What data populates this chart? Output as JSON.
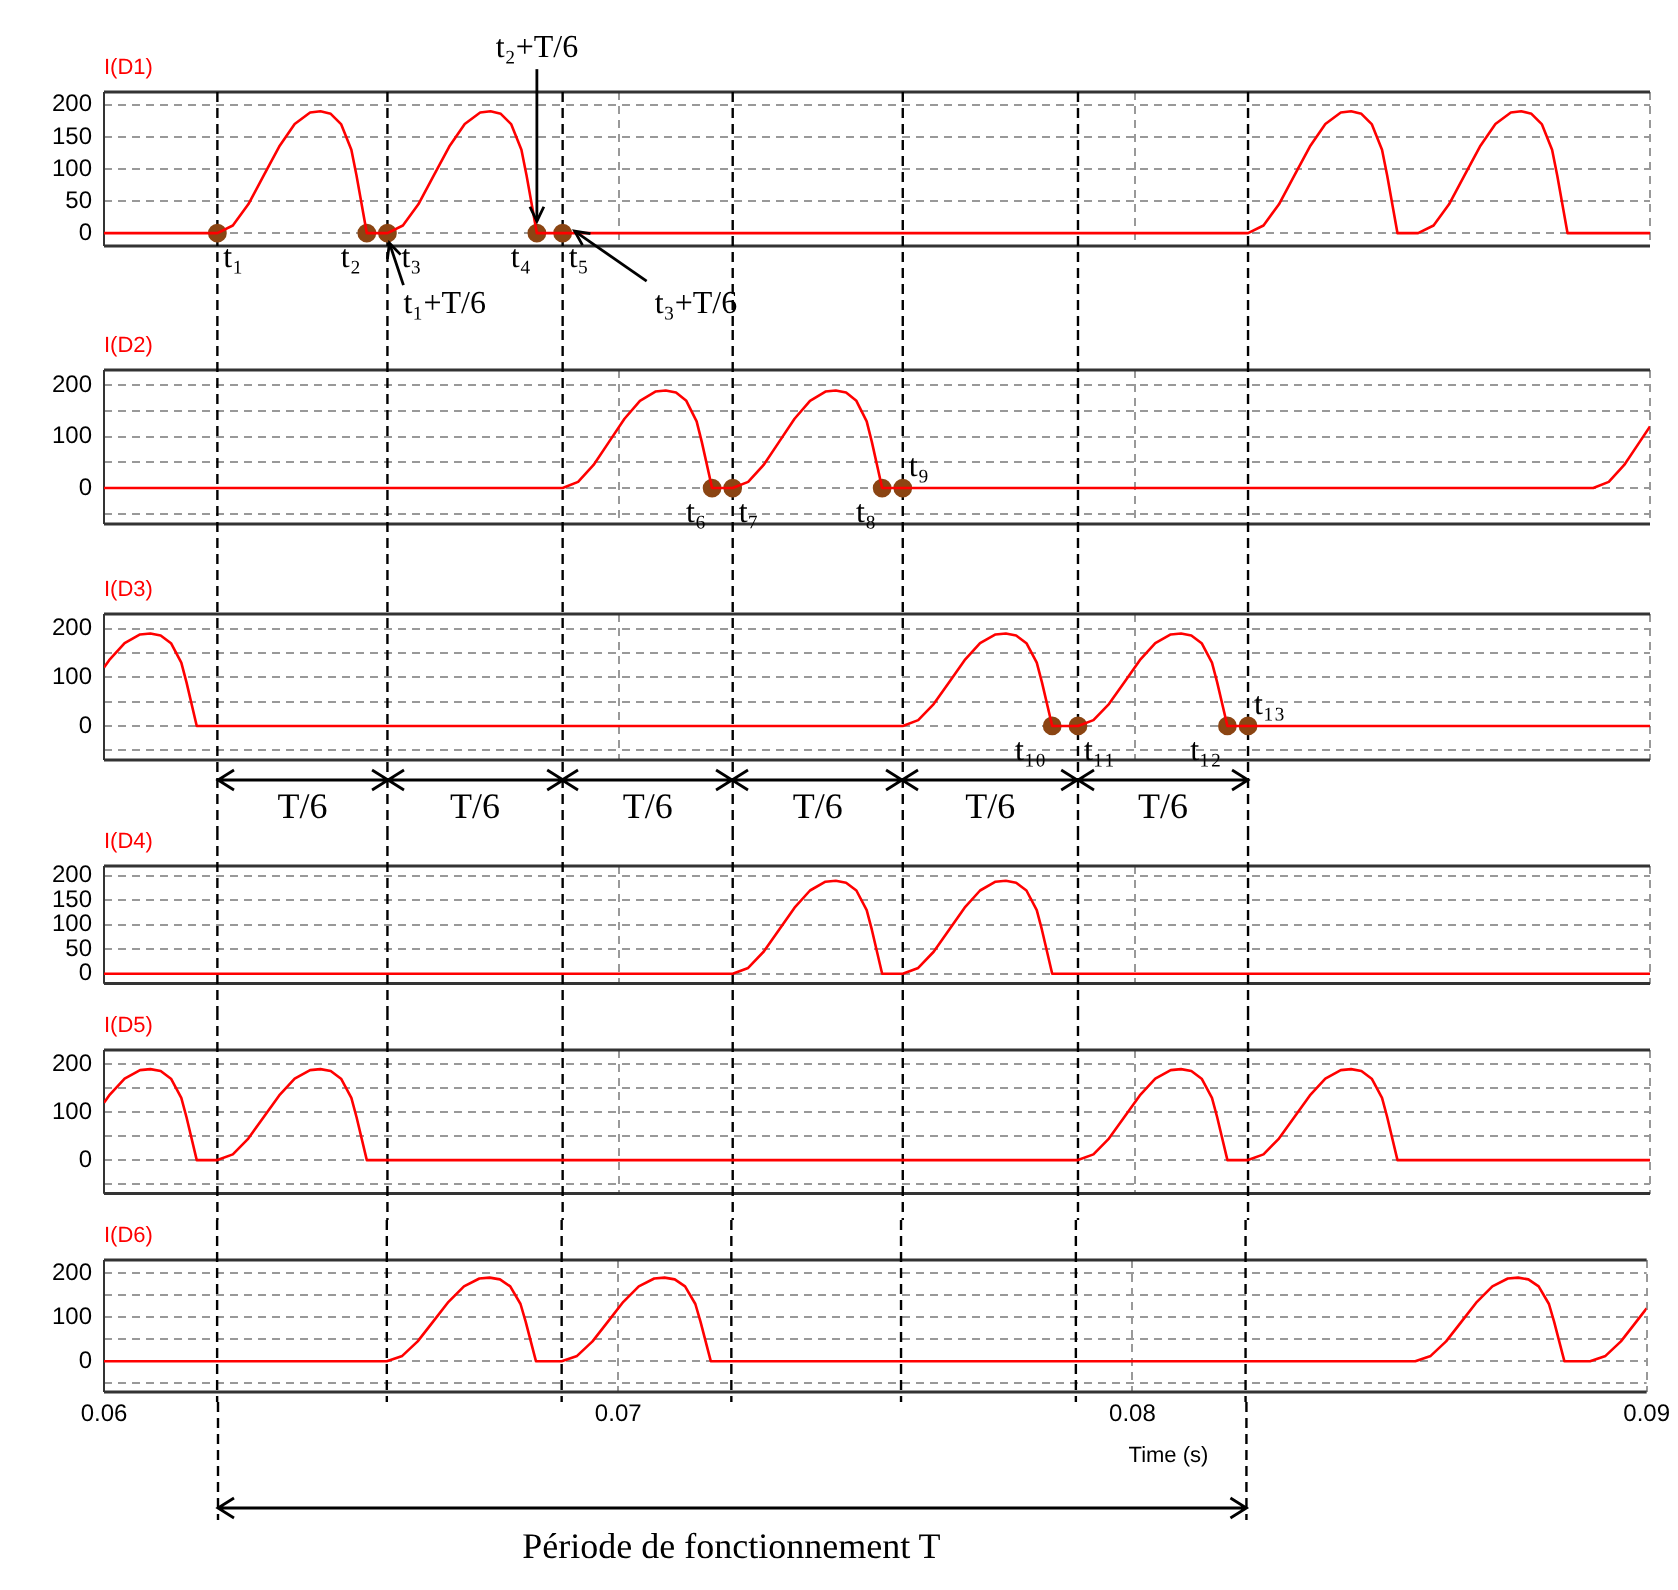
{
  "chart_data": [
    {
      "type": "line",
      "title": "I(D1)",
      "xlim": [
        0.06,
        0.09
      ],
      "xticks": [
        0.06,
        0.07,
        0.08,
        0.09
      ],
      "ylim": [
        -20,
        220
      ],
      "yticks": [
        0,
        50,
        100,
        150,
        200
      ],
      "grid": true,
      "tick_labels": "y",
      "series": [
        {
          "color": "#ff0000",
          "x": [
            0.06,
            0.0622,
            0.0625,
            0.0628,
            0.0631,
            0.0634,
            0.0637,
            0.064,
            0.0642,
            0.0644,
            0.0646,
            0.0648,
            0.0649,
            0.0651,
            0.0655,
            0.0658,
            0.0661,
            0.0664,
            0.0667,
            0.067,
            0.0673,
            0.0675,
            0.0677,
            0.0679,
            0.0681,
            0.0682,
            0.0684,
            0.0822,
            0.0825,
            0.0828,
            0.0831,
            0.0834,
            0.0837,
            0.084,
            0.0842,
            0.0844,
            0.0846,
            0.0848,
            0.0849,
            0.0851,
            0.0855,
            0.0858,
            0.0861,
            0.0864,
            0.0867,
            0.087,
            0.0873,
            0.0875,
            0.0877,
            0.0879,
            0.0881,
            0.0882,
            0.0884,
            0.09
          ],
          "values": [
            0,
            0,
            12,
            45,
            90,
            135,
            170,
            188,
            190,
            186,
            170,
            130,
            90,
            0,
            0,
            12,
            45,
            90,
            135,
            170,
            188,
            190,
            186,
            170,
            130,
            90,
            0,
            0,
            12,
            45,
            90,
            135,
            170,
            188,
            190,
            186,
            170,
            130,
            90,
            0,
            0,
            12,
            45,
            90,
            135,
            170,
            188,
            190,
            186,
            170,
            130,
            90,
            0,
            0
          ]
        },
        {
          "type": "scatter",
          "color": "#8b4513",
          "marker": "circle",
          "x": [
            0.0622,
            0.0651,
            0.0655,
            0.0684,
            0.0689
          ],
          "values": [
            0,
            0,
            0,
            0,
            0
          ]
        }
      ],
      "ref_lines": [
        {
          "axis": "x",
          "value": 0.0622,
          "line_style": "dashed"
        },
        {
          "axis": "x",
          "value": 0.0655,
          "line_style": "dashed"
        },
        {
          "axis": "x",
          "value": 0.0689,
          "line_style": "dashed"
        },
        {
          "axis": "x",
          "value": 0.0722,
          "line_style": "dashed"
        },
        {
          "axis": "x",
          "value": 0.0755,
          "line_style": "dashed"
        },
        {
          "axis": "x",
          "value": 0.0789,
          "line_style": "dashed"
        },
        {
          "axis": "x",
          "value": 0.0822,
          "line_style": "dashed"
        }
      ],
      "annotations": [
        {
          "text": "t₁",
          "x": 0.0622,
          "y": 0
        },
        {
          "text": "t₂",
          "x": 0.0651,
          "y": 0
        },
        {
          "text": "t₃",
          "x": 0.0655,
          "y": 0
        },
        {
          "text": "t₄",
          "x": 0.0684,
          "y": 0
        },
        {
          "text": "t₅",
          "x": 0.0689,
          "y": 0
        },
        {
          "text": "t₁+T/6",
          "x": 0.0655,
          "y": 0
        },
        {
          "text": "t₂+T/6",
          "x": 0.0684,
          "y": 0
        },
        {
          "text": "t₃+T/6",
          "x": 0.0689,
          "y": 0
        }
      ]
    },
    {
      "type": "line",
      "title": "I(D2)",
      "xlim": [
        0.06,
        0.09
      ],
      "xticks": [
        0.06,
        0.07,
        0.08,
        0.09
      ],
      "ylim": [
        -70,
        230
      ],
      "yticks": [
        {
          "value": -50,
          "label": null
        },
        0,
        {
          "value": 50,
          "label": null
        },
        100,
        {
          "value": 150,
          "label": null
        },
        200
      ],
      "grid": true,
      "tick_labels": "y",
      "series": [
        {
          "color": "#ff0000",
          "x": [
            0.06,
            0.0689,
            0.0692,
            0.0695,
            0.0698,
            0.0701,
            0.0704,
            0.0707,
            0.0709,
            0.0711,
            0.0713,
            0.0715,
            0.0716,
            0.0718,
            0.0722,
            0.0725,
            0.0728,
            0.0731,
            0.0734,
            0.0737,
            0.074,
            0.0742,
            0.0744,
            0.0746,
            0.0748,
            0.0749,
            0.0751,
            0.0889,
            0.0892,
            0.0895,
            0.0898,
            0.09
          ],
          "values": [
            0,
            0,
            12,
            45,
            90,
            135,
            170,
            188,
            190,
            186,
            170,
            130,
            90,
            0,
            0,
            12,
            45,
            90,
            135,
            170,
            188,
            190,
            186,
            170,
            130,
            90,
            0,
            0,
            12,
            45,
            90,
            120
          ]
        },
        {
          "type": "scatter",
          "color": "#8b4513",
          "marker": "circle",
          "x": [
            0.0718,
            0.0722,
            0.0751,
            0.0755
          ],
          "values": [
            0,
            0,
            0,
            0
          ]
        }
      ],
      "ref_lines": [
        {
          "axis": "x",
          "value": 0.0622,
          "line_style": "dashed"
        },
        {
          "axis": "x",
          "value": 0.0655,
          "line_style": "dashed"
        },
        {
          "axis": "x",
          "value": 0.0689,
          "line_style": "dashed"
        },
        {
          "axis": "x",
          "value": 0.0722,
          "line_style": "dashed"
        },
        {
          "axis": "x",
          "value": 0.0755,
          "line_style": "dashed"
        },
        {
          "axis": "x",
          "value": 0.0789,
          "line_style": "dashed"
        },
        {
          "axis": "x",
          "value": 0.0822,
          "line_style": "dashed"
        }
      ],
      "annotations": [
        {
          "text": "t₆",
          "x": 0.0718,
          "y": 0
        },
        {
          "text": "t₇",
          "x": 0.0722,
          "y": 0
        },
        {
          "text": "t₈",
          "x": 0.0751,
          "y": 0
        },
        {
          "text": "t₉",
          "x": 0.0755,
          "y": 0
        }
      ]
    },
    {
      "type": "line",
      "title": "I(D3)",
      "xlim": [
        0.06,
        0.09
      ],
      "xticks": [
        0.06,
        0.07,
        0.08,
        0.09
      ],
      "ylim": [
        -70,
        230
      ],
      "yticks": [
        {
          "value": -50,
          "label": null
        },
        0,
        {
          "value": 50,
          "label": null
        },
        100,
        {
          "value": 150,
          "label": null
        },
        200
      ],
      "grid": true,
      "tick_labels": "y",
      "series": [
        {
          "color": "#ff0000",
          "x": [
            0.06,
            0.0601,
            0.0604,
            0.0607,
            0.0609,
            0.0611,
            0.0613,
            0.0615,
            0.0616,
            0.0618,
            0.0755,
            0.0758,
            0.0761,
            0.0764,
            0.0767,
            0.077,
            0.0773,
            0.0775,
            0.0777,
            0.0779,
            0.0781,
            0.0782,
            0.0784,
            0.0789,
            0.0792,
            0.0795,
            0.0798,
            0.0801,
            0.0804,
            0.0807,
            0.0809,
            0.0811,
            0.0813,
            0.0815,
            0.0816,
            0.0818,
            0.09
          ],
          "values": [
            120,
            135,
            170,
            188,
            190,
            186,
            170,
            130,
            90,
            0,
            0,
            12,
            45,
            90,
            135,
            170,
            188,
            190,
            186,
            170,
            130,
            90,
            0,
            0,
            12,
            45,
            90,
            135,
            170,
            188,
            190,
            186,
            170,
            130,
            90,
            0,
            0
          ]
        },
        {
          "type": "scatter",
          "color": "#8b4513",
          "marker": "circle",
          "x": [
            0.0784,
            0.0789,
            0.0818,
            0.0822
          ],
          "values": [
            0,
            0,
            0,
            0
          ]
        }
      ],
      "ref_lines": [
        {
          "axis": "x",
          "value": 0.0622,
          "line_style": "dashed"
        },
        {
          "axis": "x",
          "value": 0.0655,
          "line_style": "dashed"
        },
        {
          "axis": "x",
          "value": 0.0689,
          "line_style": "dashed"
        },
        {
          "axis": "x",
          "value": 0.0722,
          "line_style": "dashed"
        },
        {
          "axis": "x",
          "value": 0.0755,
          "line_style": "dashed"
        },
        {
          "axis": "x",
          "value": 0.0789,
          "line_style": "dashed"
        },
        {
          "axis": "x",
          "value": 0.0822,
          "line_style": "dashed"
        }
      ],
      "annotations": [
        {
          "text": "t₁₀",
          "x": 0.0784,
          "y": 0
        },
        {
          "text": "t₁₁",
          "x": 0.0789,
          "y": 0
        },
        {
          "text": "t₁₂",
          "x": 0.0818,
          "y": 0
        },
        {
          "text": "t₁₃",
          "x": 0.0822,
          "y": 0
        },
        "T/6",
        "T/6",
        "T/6",
        "T/6",
        "T/6",
        "T/6"
      ]
    },
    {
      "type": "line",
      "title": "I(D4)",
      "xlim": [
        0.06,
        0.09
      ],
      "xticks": [
        0.06,
        0.07,
        0.08,
        0.09
      ],
      "ylim": [
        -20,
        220
      ],
      "yticks": [
        0,
        50,
        100,
        150,
        200
      ],
      "grid": true,
      "tick_labels": "y",
      "series": [
        {
          "color": "#ff0000",
          "x": [
            0.06,
            0.0722,
            0.0725,
            0.0728,
            0.0731,
            0.0734,
            0.0737,
            0.074,
            0.0742,
            0.0744,
            0.0746,
            0.0748,
            0.0749,
            0.0751,
            0.0755,
            0.0758,
            0.0761,
            0.0764,
            0.0767,
            0.077,
            0.0773,
            0.0775,
            0.0777,
            0.0779,
            0.0781,
            0.0782,
            0.0784,
            0.09
          ],
          "values": [
            0,
            0,
            12,
            45,
            90,
            135,
            170,
            188,
            190,
            186,
            170,
            130,
            90,
            0,
            0,
            12,
            45,
            90,
            135,
            170,
            188,
            190,
            186,
            170,
            130,
            90,
            0,
            0
          ]
        }
      ],
      "ref_lines": [
        {
          "axis": "x",
          "value": 0.0622,
          "line_style": "dashed"
        },
        {
          "axis": "x",
          "value": 0.0655,
          "line_style": "dashed"
        },
        {
          "axis": "x",
          "value": 0.0689,
          "line_style": "dashed"
        },
        {
          "axis": "x",
          "value": 0.0722,
          "line_style": "dashed"
        },
        {
          "axis": "x",
          "value": 0.0755,
          "line_style": "dashed"
        },
        {
          "axis": "x",
          "value": 0.0789,
          "line_style": "dashed"
        },
        {
          "axis": "x",
          "value": 0.0822,
          "line_style": "dashed"
        }
      ]
    },
    {
      "type": "line",
      "title": "I(D5)",
      "xlim": [
        0.06,
        0.09
      ],
      "xticks": [
        0.06,
        0.07,
        0.08,
        0.09
      ],
      "ylim": [
        -70,
        230
      ],
      "yticks": [
        {
          "value": -50,
          "label": null
        },
        0,
        {
          "value": 50,
          "label": null
        },
        100,
        {
          "value": 150,
          "label": null
        },
        200
      ],
      "grid": true,
      "tick_labels": "y",
      "series": [
        {
          "color": "#ff0000",
          "x": [
            0.06,
            0.0601,
            0.0604,
            0.0607,
            0.0609,
            0.0611,
            0.0613,
            0.0615,
            0.0616,
            0.0618,
            0.0622,
            0.0625,
            0.0628,
            0.0631,
            0.0634,
            0.0637,
            0.064,
            0.0642,
            0.0644,
            0.0646,
            0.0648,
            0.0649,
            0.0651,
            0.0789,
            0.0792,
            0.0795,
            0.0798,
            0.0801,
            0.0804,
            0.0807,
            0.0809,
            0.0811,
            0.0813,
            0.0815,
            0.0816,
            0.0818,
            0.0822,
            0.0825,
            0.0828,
            0.0831,
            0.0834,
            0.0837,
            0.084,
            0.0842,
            0.0844,
            0.0846,
            0.0848,
            0.0849,
            0.0851,
            0.09
          ],
          "values": [
            120,
            135,
            170,
            188,
            190,
            186,
            170,
            130,
            90,
            0,
            0,
            12,
            45,
            90,
            135,
            170,
            188,
            190,
            186,
            170,
            130,
            90,
            0,
            0,
            12,
            45,
            90,
            135,
            170,
            188,
            190,
            186,
            170,
            130,
            90,
            0,
            0,
            12,
            45,
            90,
            135,
            170,
            188,
            190,
            186,
            170,
            130,
            90,
            0,
            0
          ]
        }
      ],
      "ref_lines": [
        {
          "axis": "x",
          "value": 0.0622,
          "line_style": "dashed"
        },
        {
          "axis": "x",
          "value": 0.0655,
          "line_style": "dashed"
        },
        {
          "axis": "x",
          "value": 0.0689,
          "line_style": "dashed"
        },
        {
          "axis": "x",
          "value": 0.0722,
          "line_style": "dashed"
        },
        {
          "axis": "x",
          "value": 0.0755,
          "line_style": "dashed"
        },
        {
          "axis": "x",
          "value": 0.0789,
          "line_style": "dashed"
        },
        {
          "axis": "x",
          "value": 0.0822,
          "line_style": "dashed"
        }
      ]
    },
    {
      "type": "line",
      "title": "I(D6)",
      "xlabel": "Time (s)",
      "xlim": [
        0.06,
        0.09
      ],
      "xticks": [
        0.06,
        0.07,
        0.08,
        0.09
      ],
      "ylim": [
        -70,
        230
      ],
      "yticks": [
        {
          "value": -50,
          "label": null
        },
        0,
        {
          "value": 50,
          "label": null
        },
        100,
        {
          "value": 150,
          "label": null
        },
        200
      ],
      "grid": true,
      "series": [
        {
          "color": "#ff0000",
          "x": [
            0.06,
            0.0655,
            0.0658,
            0.0661,
            0.0664,
            0.0667,
            0.067,
            0.0673,
            0.0675,
            0.0677,
            0.0679,
            0.0681,
            0.0682,
            0.0684,
            0.0689,
            0.0692,
            0.0695,
            0.0698,
            0.0701,
            0.0704,
            0.0707,
            0.0709,
            0.0711,
            0.0713,
            0.0715,
            0.0716,
            0.0718,
            0.0855,
            0.0858,
            0.0861,
            0.0864,
            0.0867,
            0.087,
            0.0873,
            0.0875,
            0.0877,
            0.0879,
            0.0881,
            0.0882,
            0.0884,
            0.0889,
            0.0892,
            0.0895,
            0.0898,
            0.09
          ],
          "values": [
            0,
            0,
            12,
            45,
            90,
            135,
            170,
            188,
            190,
            186,
            170,
            130,
            90,
            0,
            0,
            12,
            45,
            90,
            135,
            170,
            188,
            190,
            186,
            170,
            130,
            90,
            0,
            0,
            12,
            45,
            90,
            135,
            170,
            188,
            190,
            186,
            170,
            130,
            90,
            0,
            0,
            12,
            45,
            90,
            120
          ]
        }
      ],
      "ref_lines": [
        {
          "axis": "x",
          "value": 0.0622,
          "line_style": "dashed"
        },
        {
          "axis": "x",
          "value": 0.0655,
          "line_style": "dashed"
        },
        {
          "axis": "x",
          "value": 0.0689,
          "line_style": "dashed"
        },
        {
          "axis": "x",
          "value": 0.0722,
          "line_style": "dashed"
        },
        {
          "axis": "x",
          "value": 0.0755,
          "line_style": "dashed"
        },
        {
          "axis": "x",
          "value": 0.0789,
          "line_style": "dashed"
        },
        {
          "axis": "x",
          "value": 0.0822,
          "line_style": "dashed"
        }
      ],
      "annotations": [
        "Période de fonctionnement T"
      ]
    }
  ]
}
